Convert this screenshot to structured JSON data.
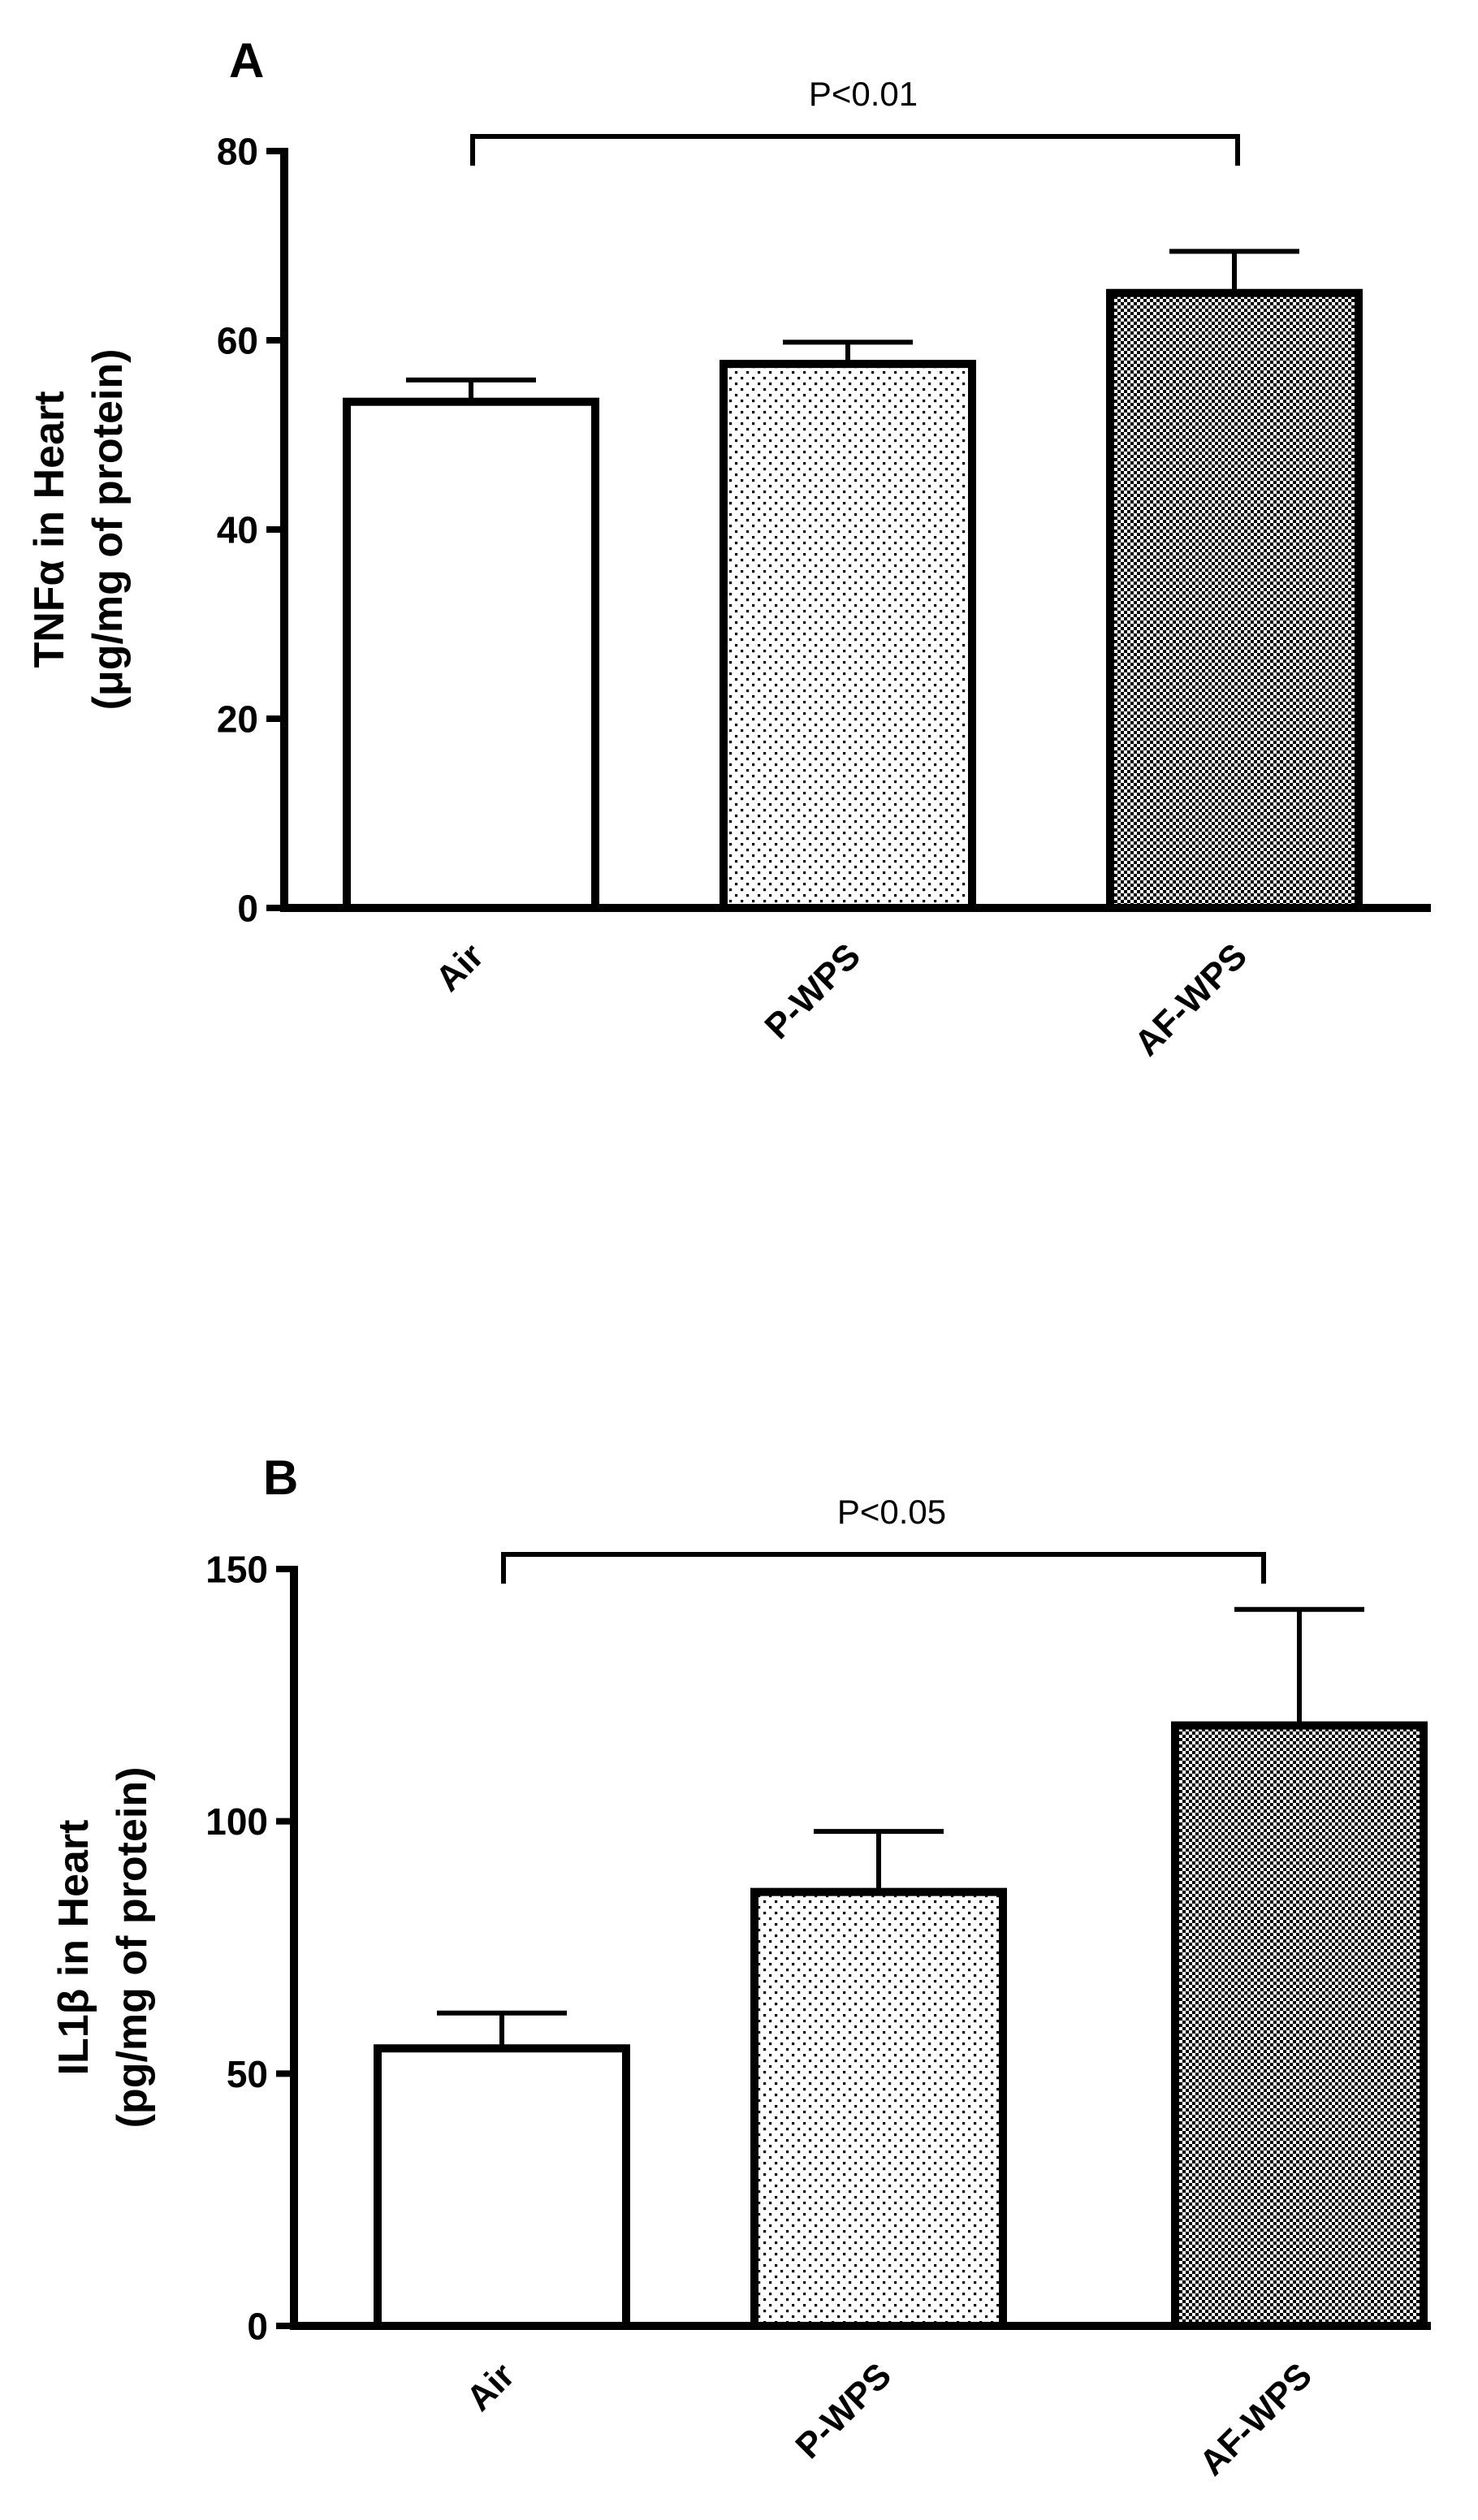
{
  "chart_data": [
    {
      "type": "bar",
      "panel_label": "A",
      "categories": [
        "Air",
        "P-WPS",
        "AF-WPS"
      ],
      "values": [
        53.5,
        57.5,
        65.0
      ],
      "error_plus": [
        2.3,
        2.3,
        4.4
      ],
      "bar_fills": [
        "white",
        "sparse-dots",
        "dense-checker"
      ],
      "ylabel_line1": "TNFα in Heart",
      "ylabel_line2": "(μg/mg of protein)",
      "xlabel": "",
      "ylim": [
        0,
        80
      ],
      "yticks": [
        0,
        20,
        40,
        60,
        80
      ],
      "significance": {
        "from": "Air",
        "to": "AF-WPS",
        "label": "P<0.01"
      },
      "grid": false,
      "legend": "none"
    },
    {
      "type": "bar",
      "panel_label": "B",
      "categories": [
        "Air",
        "P-WPS",
        "AF-WPS"
      ],
      "values": [
        55,
        86,
        119
      ],
      "error_plus": [
        7,
        12,
        23
      ],
      "bar_fills": [
        "white",
        "sparse-dots",
        "dense-checker"
      ],
      "ylabel_line1": "IL1β in Heart",
      "ylabel_line2": "(pg/mg of protein)",
      "xlabel": "",
      "ylim": [
        0,
        150
      ],
      "yticks": [
        0,
        50,
        100,
        150
      ],
      "significance": {
        "from": "Air",
        "to": "AF-WPS",
        "label": "P<0.05"
      },
      "grid": false,
      "legend": "none"
    }
  ]
}
